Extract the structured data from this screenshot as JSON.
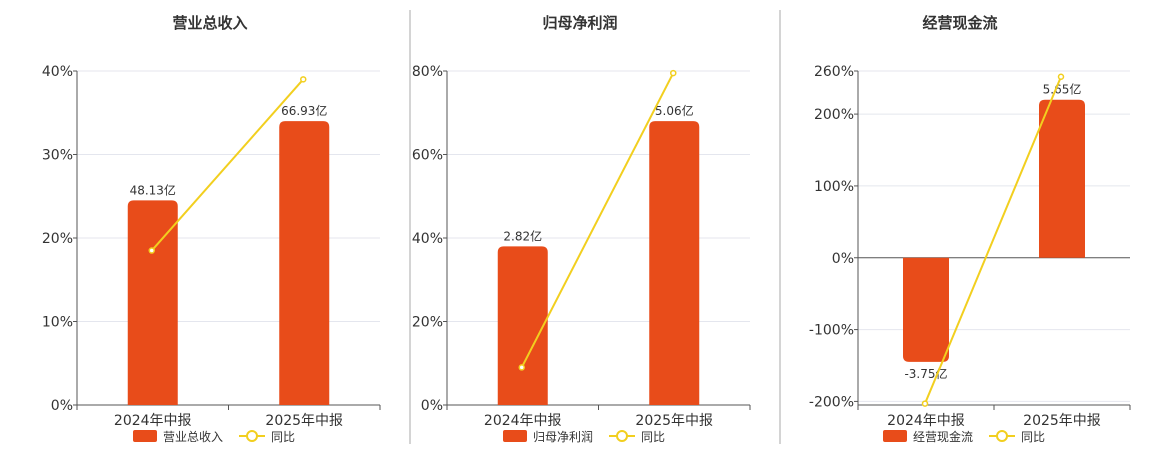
{
  "colors": {
    "bar": "#E84C1A",
    "line": "#F2CF1F",
    "grid": "#E4E6EE",
    "axis": "#555555",
    "text": "#333333",
    "divider": "#AAAAAA"
  },
  "chart_data": [
    {
      "type": "bar",
      "title": "营业总收入",
      "categories": [
        "2024年中报",
        "2025年中报"
      ],
      "series": [
        {
          "name": "营业总收入",
          "type": "bar",
          "values": [
            24.5,
            34.0
          ],
          "labels": [
            "48.13亿",
            "66.93亿"
          ]
        },
        {
          "name": "同比",
          "type": "line",
          "values": [
            18.5,
            39.0
          ]
        }
      ],
      "yticks": [
        "0%",
        "10%",
        "20%",
        "30%",
        "40%"
      ],
      "ylim": [
        0,
        40
      ],
      "grid": true,
      "legend": "bottom"
    },
    {
      "type": "bar",
      "title": "归母净利润",
      "categories": [
        "2024年中报",
        "2025年中报"
      ],
      "series": [
        {
          "name": "归母净利润",
          "type": "bar",
          "values": [
            38.0,
            68.0
          ],
          "labels": [
            "2.82亿",
            "5.06亿"
          ]
        },
        {
          "name": "同比",
          "type": "line",
          "values": [
            9.0,
            79.5
          ]
        }
      ],
      "yticks": [
        "0%",
        "20%",
        "40%",
        "60%",
        "80%"
      ],
      "ylim": [
        0,
        80
      ],
      "grid": true,
      "legend": "bottom"
    },
    {
      "type": "bar",
      "title": "经营现金流",
      "categories": [
        "2024年中报",
        "2025年中报"
      ],
      "series": [
        {
          "name": "经营现金流",
          "type": "bar",
          "values": [
            -145,
            220
          ],
          "labels": [
            "-3.75亿",
            "5.65亿"
          ]
        },
        {
          "name": "同比",
          "type": "line",
          "values": [
            -203,
            252
          ]
        }
      ],
      "yticks": [
        "-200%",
        "-100%",
        "0%",
        "100%",
        "200%",
        "260%"
      ],
      "ytick_values": [
        -200,
        -100,
        0,
        100,
        200,
        260
      ],
      "ylim": [
        -205,
        260
      ],
      "grid": true,
      "legend": "bottom"
    }
  ]
}
